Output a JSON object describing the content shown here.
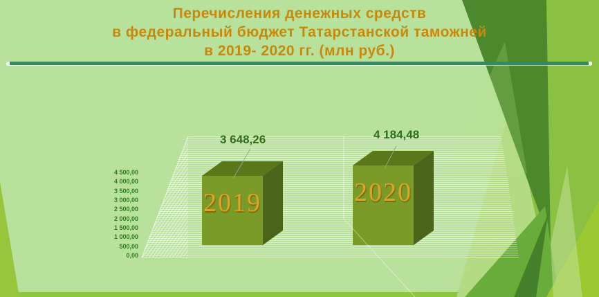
{
  "slide": {
    "title_lines": [
      "Перечисления денежных средств",
      "в федеральный бюджет Татарстанской таможней",
      "в 2019- 2020 гг. (млн руб.)"
    ]
  },
  "chart_data": {
    "type": "bar",
    "style": "3d-cube-bars",
    "title": "Перечисления денежных средств в федеральный бюджет Татарстанской таможней в 2019- 2020 гг. (млн руб.)",
    "unit": "млн руб.",
    "categories": [
      "2019",
      "2020"
    ],
    "values": [
      3648.26,
      4184.48
    ],
    "value_labels": [
      "3 648,26",
      "4 184,48"
    ],
    "ylim": [
      0,
      4500
    ],
    "y_ticks": [
      "4 500,00",
      "4 000,00",
      "3 500,00",
      "3 000,00",
      "2 500,00",
      "2 000,00",
      "1 500,00",
      "1 000,00",
      "500,00",
      "0,00"
    ],
    "grid": true,
    "legend": false
  },
  "colors": {
    "background": "#b8e29c",
    "title_text": "#c8890b",
    "divider_line": "#2e8c64",
    "axis_text": "#2f7a1f",
    "value_text": "#2e6e1a",
    "bar_front": "#7a9b28",
    "bar_top": "#5a7819",
    "bar_side": "#4a641a",
    "bar_year_text": "#e2a321",
    "accent_dark_green": "#4c892c",
    "accent_yellow_green": "#9cc832"
  }
}
